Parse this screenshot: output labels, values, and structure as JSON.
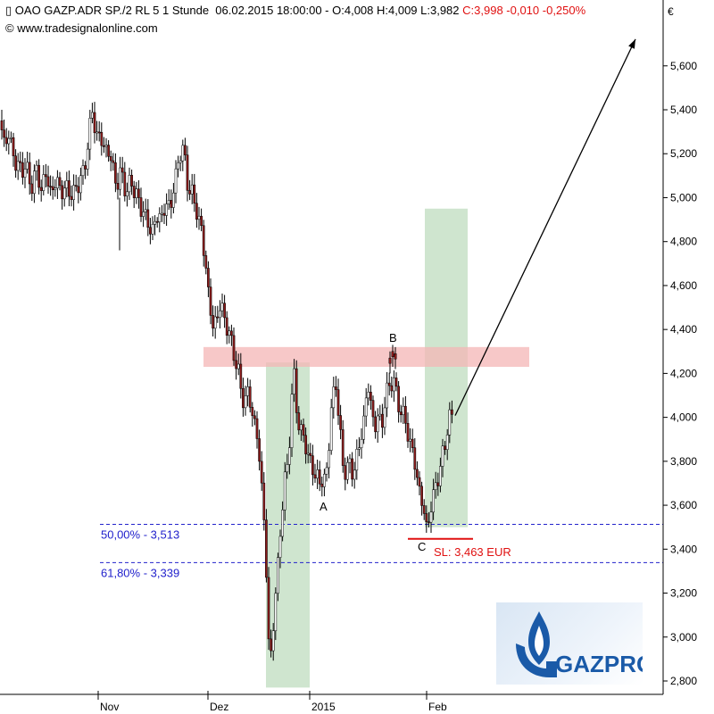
{
  "header": {
    "symbol_icon": "candlestick-icon",
    "instrument": "OAO GAZP.ADR SP./2 RL 5 1 Stunde",
    "datetime": "06.02.2015 18:00:00",
    "ohl": "O:4,008 H:4,009 L:3,982",
    "close_change": "C:3,998 -0,010 -0,250%",
    "source": "www.tradesignalonline.com",
    "copyright_icon": "copyright-icon"
  },
  "chart_data": {
    "type": "candlestick",
    "currency": "€",
    "ylim": [
      2.72,
      5.78
    ],
    "y_ticks": [
      "2,800",
      "3,000",
      "3,200",
      "3,400",
      "3,600",
      "3,800",
      "4,000",
      "4,200",
      "4,400",
      "4,600",
      "4,800",
      "5,000",
      "5,200",
      "5,400",
      "5,600"
    ],
    "y_tick_values": [
      2.8,
      3.0,
      3.2,
      3.4,
      3.6,
      3.8,
      4.0,
      4.2,
      4.4,
      4.6,
      4.8,
      5.0,
      5.2,
      5.4,
      5.6
    ],
    "x_ticks": [
      "Nov",
      "Dez",
      "2015",
      "Feb"
    ],
    "price_path": [
      [
        0,
        5.35
      ],
      [
        5,
        5.25
      ],
      [
        10,
        5.28
      ],
      [
        16,
        5.18
      ],
      [
        22,
        5.12
      ],
      [
        28,
        5.15
      ],
      [
        34,
        5.05
      ],
      [
        40,
        5.12
      ],
      [
        46,
        5.05
      ],
      [
        52,
        5.1
      ],
      [
        58,
        5.02
      ],
      [
        64,
        5.08
      ],
      [
        70,
        5.02
      ],
      [
        76,
        5.05
      ],
      [
        82,
        5.0
      ],
      [
        88,
        5.08
      ],
      [
        94,
        5.1
      ],
      [
        98,
        5.25
      ],
      [
        103,
        5.38
      ],
      [
        108,
        5.3
      ],
      [
        114,
        5.25
      ],
      [
        120,
        5.22
      ],
      [
        126,
        5.15
      ],
      [
        131,
        5.05
      ],
      [
        136,
        5.12
      ],
      [
        142,
        5.02
      ],
      [
        148,
        5.08
      ],
      [
        154,
        4.98
      ],
      [
        160,
        4.95
      ],
      [
        165,
        4.88
      ],
      [
        170,
        4.85
      ],
      [
        175,
        4.9
      ],
      [
        180,
        4.92
      ],
      [
        186,
        4.95
      ],
      [
        191,
        4.98
      ],
      [
        196,
        5.05
      ],
      [
        201,
        5.22
      ],
      [
        206,
        5.2
      ],
      [
        211,
        5.05
      ],
      [
        216,
        5.0
      ],
      [
        220,
        4.95
      ],
      [
        224,
        4.88
      ],
      [
        227,
        4.82
      ],
      [
        229,
        4.72
      ],
      [
        231,
        4.68
      ],
      [
        234,
        4.55
      ],
      [
        238,
        4.4
      ],
      [
        242,
        4.45
      ],
      [
        246,
        4.5
      ],
      [
        250,
        4.48
      ],
      [
        254,
        4.42
      ],
      [
        258,
        4.35
      ],
      [
        262,
        4.3
      ],
      [
        266,
        4.22
      ],
      [
        270,
        4.12
      ],
      [
        274,
        4.08
      ],
      [
        278,
        4.1
      ],
      [
        282,
        4.05
      ],
      [
        286,
        3.95
      ],
      [
        290,
        3.85
      ],
      [
        294,
        3.65
      ],
      [
        297,
        3.45
      ],
      [
        300,
        3.1
      ],
      [
        302,
        2.85
      ],
      [
        304,
        2.95
      ],
      [
        307,
        3.1
      ],
      [
        311,
        3.3
      ],
      [
        315,
        3.55
      ],
      [
        319,
        3.7
      ],
      [
        323,
        3.8
      ],
      [
        326,
        4.05
      ],
      [
        329,
        4.2
      ],
      [
        332,
        4.05
      ],
      [
        336,
        3.95
      ],
      [
        340,
        3.9
      ],
      [
        344,
        3.85
      ],
      [
        348,
        3.8
      ],
      [
        352,
        3.72
      ],
      [
        356,
        3.75
      ],
      [
        360,
        3.68
      ],
      [
        364,
        3.72
      ],
      [
        368,
        3.85
      ],
      [
        372,
        4.05
      ],
      [
        376,
        4.2
      ],
      [
        380,
        3.95
      ],
      [
        384,
        3.8
      ],
      [
        388,
        3.75
      ],
      [
        392,
        3.78
      ],
      [
        396,
        3.75
      ],
      [
        400,
        3.82
      ],
      [
        404,
        3.9
      ],
      [
        408,
        4.0
      ],
      [
        412,
        4.15
      ],
      [
        416,
        4.05
      ],
      [
        420,
        3.95
      ],
      [
        424,
        4.0
      ],
      [
        428,
        3.98
      ],
      [
        432,
        4.08
      ],
      [
        436,
        4.15
      ],
      [
        440,
        4.18
      ],
      [
        444,
        4.1
      ],
      [
        448,
        4.05
      ],
      [
        452,
        4.0
      ],
      [
        456,
        3.95
      ],
      [
        460,
        3.88
      ],
      [
        464,
        3.8
      ],
      [
        468,
        3.72
      ],
      [
        472,
        3.62
      ],
      [
        476,
        3.55
      ],
      [
        478,
        3.5
      ],
      [
        481,
        3.55
      ],
      [
        485,
        3.62
      ],
      [
        489,
        3.72
      ],
      [
        493,
        3.75
      ],
      [
        497,
        3.85
      ],
      [
        501,
        3.95
      ],
      [
        505,
        4.0
      ],
      [
        509,
        4.0
      ]
    ],
    "b_cluster": [
      [
        437,
        4.25
      ],
      [
        440,
        4.28
      ],
      [
        443,
        4.27
      ]
    ],
    "resistance_zone": {
      "from": 4.23,
      "to": 4.32
    },
    "green_boxes": [
      {
        "from": 2.77,
        "to": 4.25
      },
      {
        "from": 3.5,
        "to": 4.95
      }
    ],
    "fib_levels": [
      {
        "label": "50,00% - 3,513",
        "value": 3.513
      },
      {
        "label": "61,80% - 3,339",
        "value": 3.339
      }
    ],
    "stop_loss": {
      "label": "SL: 3,463 EUR",
      "value": 3.463
    },
    "wave_labels": [
      "A",
      "B",
      "C"
    ],
    "arrow": {
      "from": 4.0,
      "to": 5.75
    }
  },
  "colors": {
    "up": "#ffffff",
    "down": "#8b1a1a",
    "wick": "#000000",
    "resistance": "#f4b6b6",
    "green_box": "#a8cfa8",
    "fib": "#2222cc",
    "stop": "#e01010",
    "grid": "#cccccc"
  },
  "logo": {
    "text": "GAZPROM",
    "icon": "gazprom-flame-icon",
    "text_color": "#1a5aa8"
  }
}
